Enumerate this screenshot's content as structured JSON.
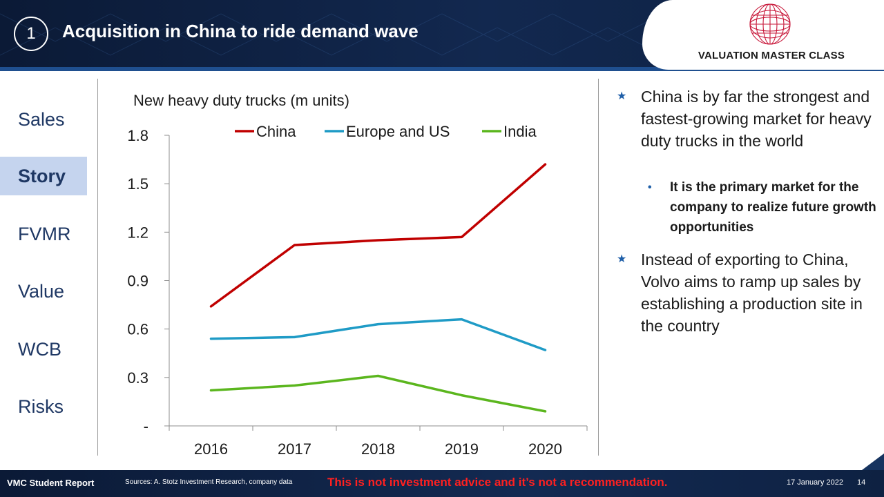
{
  "header": {
    "slide_number": "1",
    "title": "Acquisition in China to ride demand wave",
    "logo_text": "VALUATION MASTER CLASS"
  },
  "nav": {
    "items": [
      {
        "label": "Sales",
        "active": false
      },
      {
        "label": "Story",
        "active": true
      },
      {
        "label": "FVMR",
        "active": false
      },
      {
        "label": "Value",
        "active": false
      },
      {
        "label": "WCB",
        "active": false
      },
      {
        "label": "Risks",
        "active": false
      }
    ]
  },
  "chart_data": {
    "type": "line",
    "title": "New heavy duty trucks (m units)",
    "xlabel": "",
    "ylabel": "",
    "categories": [
      "2016",
      "2017",
      "2018",
      "2019",
      "2020"
    ],
    "ylim": [
      0,
      1.8
    ],
    "yticks": [
      0,
      0.3,
      0.6,
      0.9,
      1.2,
      1.5,
      1.8
    ],
    "ytick_labels": [
      "-",
      "0.3",
      "0.6",
      "0.9",
      "1.2",
      "1.5",
      "1.8"
    ],
    "grid": false,
    "legend_position": "top",
    "series": [
      {
        "name": "China",
        "color": "#c00000",
        "values": [
          0.74,
          1.12,
          1.15,
          1.17,
          1.62
        ]
      },
      {
        "name": "Europe and US",
        "color": "#1f9bc6",
        "values": [
          0.54,
          0.55,
          0.63,
          0.66,
          0.47
        ]
      },
      {
        "name": "India",
        "color": "#5bb61e",
        "values": [
          0.22,
          0.25,
          0.31,
          0.19,
          0.09
        ]
      }
    ]
  },
  "bullets": {
    "b1": "China is by far the strongest and fastest-growing market for heavy duty trucks in the world",
    "b1_sub": "It is the primary market for the company to realize future growth opportunities",
    "b2": "Instead of exporting to China, Volvo aims to ramp up sales by establishing a production site in the country"
  },
  "footer": {
    "report": "VMC Student Report",
    "sources": "Sources: A. Stotz Investment Research, company data",
    "disclaimer": "This is not investment advice and it’s not a recommendation.",
    "date": "17 January 2022",
    "page": "14"
  }
}
